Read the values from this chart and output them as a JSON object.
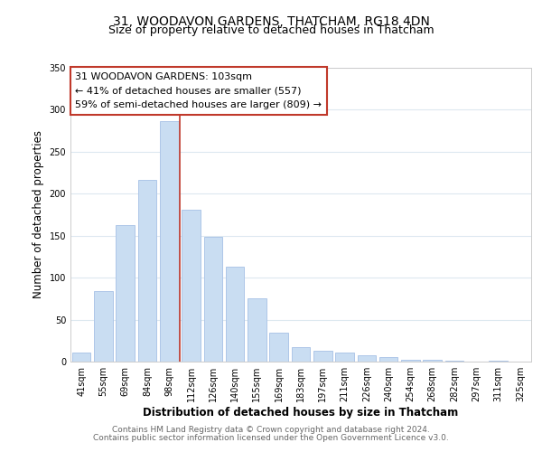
{
  "title": "31, WOODAVON GARDENS, THATCHAM, RG18 4DN",
  "subtitle": "Size of property relative to detached houses in Thatcham",
  "xlabel": "Distribution of detached houses by size in Thatcham",
  "ylabel": "Number of detached properties",
  "bar_labels": [
    "41sqm",
    "55sqm",
    "69sqm",
    "84sqm",
    "98sqm",
    "112sqm",
    "126sqm",
    "140sqm",
    "155sqm",
    "169sqm",
    "183sqm",
    "197sqm",
    "211sqm",
    "226sqm",
    "240sqm",
    "254sqm",
    "268sqm",
    "282sqm",
    "297sqm",
    "311sqm",
    "325sqm"
  ],
  "bar_values": [
    11,
    84,
    163,
    216,
    286,
    181,
    149,
    113,
    75,
    34,
    17,
    13,
    11,
    8,
    5,
    2,
    2,
    1,
    0,
    1,
    0
  ],
  "bar_color": "#c9ddf2",
  "bar_edge_color": "#aec6e8",
  "vline_index": 4,
  "vline_color": "#c0392b",
  "ylim": [
    0,
    350
  ],
  "annotation_line1": "31 WOODAVON GARDENS: 103sqm",
  "annotation_line2": "← 41% of detached houses are smaller (557)",
  "annotation_line3": "59% of semi-detached houses are larger (809) →",
  "footer_line1": "Contains HM Land Registry data © Crown copyright and database right 2024.",
  "footer_line2": "Contains public sector information licensed under the Open Government Licence v3.0.",
  "background_color": "#ffffff",
  "grid_color": "#dde8f0",
  "title_fontsize": 10,
  "subtitle_fontsize": 9,
  "axis_label_fontsize": 8.5,
  "tick_fontsize": 7,
  "annotation_fontsize": 8,
  "footer_fontsize": 6.5
}
